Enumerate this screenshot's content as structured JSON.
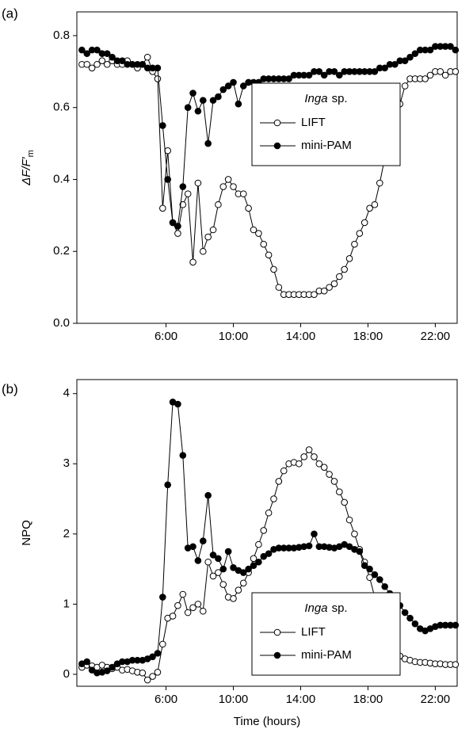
{
  "chart_data": [
    {
      "type": "line",
      "panel_label": "(a)",
      "ylabel": {
        "main": "ΔF/F′",
        "sub": "m"
      },
      "x": [
        1.0,
        1.3,
        1.6,
        1.9,
        2.2,
        2.5,
        2.8,
        3.1,
        3.4,
        3.7,
        4.0,
        4.3,
        4.6,
        4.9,
        5.2,
        5.5,
        5.8,
        6.1,
        6.4,
        6.7,
        7.0,
        7.3,
        7.6,
        7.9,
        8.2,
        8.5,
        8.8,
        9.1,
        9.4,
        9.7,
        10.0,
        10.3,
        10.6,
        10.9,
        11.2,
        11.5,
        11.8,
        12.1,
        12.4,
        12.7,
        13.0,
        13.3,
        13.6,
        13.9,
        14.2,
        14.5,
        14.8,
        15.1,
        15.4,
        15.7,
        16.0,
        16.3,
        16.6,
        16.9,
        17.2,
        17.5,
        17.8,
        18.1,
        18.4,
        18.7,
        19.0,
        19.3,
        19.6,
        19.9,
        20.2,
        20.5,
        20.8,
        21.1,
        21.4,
        21.7,
        22.0,
        22.3,
        22.6,
        22.9,
        23.2
      ],
      "series": [
        {
          "name": "LIFT",
          "color": "#000000",
          "marker": "open",
          "values": [
            0.72,
            0.72,
            0.71,
            0.72,
            0.73,
            0.72,
            0.73,
            0.72,
            0.72,
            0.73,
            0.72,
            0.71,
            0.72,
            0.74,
            0.7,
            0.68,
            0.32,
            0.48,
            0.28,
            0.25,
            0.33,
            0.36,
            0.17,
            0.39,
            0.2,
            0.24,
            0.26,
            0.33,
            0.38,
            0.4,
            0.38,
            0.36,
            0.36,
            0.32,
            0.26,
            0.25,
            0.22,
            0.19,
            0.15,
            0.1,
            0.08,
            0.08,
            0.08,
            0.08,
            0.08,
            0.08,
            0.08,
            0.09,
            0.09,
            0.1,
            0.11,
            0.13,
            0.15,
            0.18,
            0.22,
            0.25,
            0.28,
            0.32,
            0.33,
            0.39,
            0.46,
            0.52,
            0.56,
            0.61,
            0.66,
            0.68,
            0.68,
            0.68,
            0.68,
            0.69,
            0.7,
            0.7,
            0.69,
            0.7,
            0.7
          ]
        },
        {
          "name": "mini-PAM",
          "color": "#000000",
          "marker": "filled",
          "values": [
            0.76,
            0.75,
            0.76,
            0.76,
            0.75,
            0.75,
            0.74,
            0.73,
            0.73,
            0.72,
            0.72,
            0.72,
            0.72,
            0.71,
            0.71,
            0.71,
            0.55,
            0.4,
            0.28,
            0.27,
            0.38,
            0.6,
            0.64,
            0.59,
            0.62,
            0.5,
            0.62,
            0.63,
            0.65,
            0.66,
            0.67,
            0.61,
            0.66,
            0.67,
            0.67,
            0.67,
            0.68,
            0.68,
            0.68,
            0.68,
            0.68,
            0.68,
            0.69,
            0.69,
            0.69,
            0.69,
            0.7,
            0.7,
            0.69,
            0.7,
            0.7,
            0.69,
            0.7,
            0.7,
            0.7,
            0.7,
            0.7,
            0.7,
            0.7,
            0.71,
            0.71,
            0.72,
            0.72,
            0.73,
            0.73,
            0.74,
            0.75,
            0.76,
            0.76,
            0.76,
            0.77,
            0.77,
            0.77,
            0.77,
            0.76
          ]
        }
      ],
      "xlim": [
        0.7,
        23.3
      ],
      "xticks": [
        {
          "value": 6,
          "label": "6:00"
        },
        {
          "value": 10,
          "label": "10:00"
        },
        {
          "value": 14,
          "label": "14:00"
        },
        {
          "value": 18,
          "label": "18:00"
        },
        {
          "value": 22,
          "label": "22:00"
        }
      ],
      "ylim": [
        0,
        0.866
      ],
      "yticks": [
        {
          "value": 0,
          "label": "0.0"
        },
        {
          "value": 0.2,
          "label": "0.2"
        },
        {
          "value": 0.4,
          "label": "0.4"
        },
        {
          "value": 0.6,
          "label": "0.6"
        },
        {
          "value": 0.8,
          "label": "0.8"
        }
      ],
      "legend_title": {
        "italic": "Inga",
        "plain": "sp."
      },
      "legend_loc": "center right"
    },
    {
      "type": "line",
      "panel_label": "(b)",
      "ylabel": {
        "main": "NPQ"
      },
      "xlabel": "Time (hours)",
      "x": [
        1.0,
        1.3,
        1.6,
        1.9,
        2.2,
        2.5,
        2.8,
        3.1,
        3.4,
        3.7,
        4.0,
        4.3,
        4.6,
        4.9,
        5.2,
        5.5,
        5.8,
        6.1,
        6.4,
        6.7,
        7.0,
        7.3,
        7.6,
        7.9,
        8.2,
        8.5,
        8.8,
        9.1,
        9.4,
        9.7,
        10.0,
        10.3,
        10.6,
        10.9,
        11.2,
        11.5,
        11.8,
        12.1,
        12.4,
        12.7,
        13.0,
        13.3,
        13.6,
        13.9,
        14.2,
        14.5,
        14.8,
        15.1,
        15.4,
        15.7,
        16.0,
        16.3,
        16.6,
        16.9,
        17.2,
        17.5,
        17.8,
        18.1,
        18.4,
        18.7,
        19.0,
        19.3,
        19.6,
        19.9,
        20.2,
        20.5,
        20.8,
        21.1,
        21.4,
        21.7,
        22.0,
        22.3,
        22.6,
        22.9,
        23.2
      ],
      "series": [
        {
          "name": "LIFT",
          "color": "#000000",
          "marker": "open",
          "values": [
            0.1,
            0.13,
            0.12,
            0.1,
            0.13,
            0.1,
            0.08,
            0.1,
            0.06,
            0.07,
            0.05,
            0.03,
            0.02,
            -0.08,
            -0.03,
            0.03,
            0.43,
            0.8,
            0.83,
            0.98,
            1.14,
            0.88,
            0.95,
            1.0,
            0.9,
            1.6,
            1.4,
            1.45,
            1.28,
            1.1,
            1.08,
            1.2,
            1.3,
            1.45,
            1.65,
            1.85,
            2.05,
            2.3,
            2.5,
            2.75,
            2.9,
            3.0,
            3.02,
            3.0,
            3.1,
            3.2,
            3.1,
            3.0,
            2.95,
            2.85,
            2.75,
            2.6,
            2.45,
            2.2,
            2.0,
            1.78,
            1.6,
            1.38,
            1.1,
            0.85,
            0.6,
            0.4,
            0.3,
            0.26,
            0.22,
            0.2,
            0.18,
            0.17,
            0.17,
            0.16,
            0.15,
            0.15,
            0.14,
            0.14,
            0.14
          ]
        },
        {
          "name": "mini-PAM",
          "color": "#000000",
          "marker": "filled",
          "values": [
            0.15,
            0.18,
            0.06,
            0.02,
            0.03,
            0.05,
            0.1,
            0.15,
            0.18,
            0.18,
            0.2,
            0.2,
            0.2,
            0.22,
            0.25,
            0.3,
            1.1,
            2.7,
            3.88,
            3.85,
            3.12,
            1.8,
            1.82,
            1.62,
            1.9,
            2.55,
            1.7,
            1.65,
            1.5,
            1.75,
            1.52,
            1.48,
            1.45,
            1.5,
            1.55,
            1.6,
            1.68,
            1.72,
            1.78,
            1.8,
            1.8,
            1.8,
            1.8,
            1.81,
            1.82,
            1.83,
            2.0,
            1.82,
            1.82,
            1.81,
            1.8,
            1.82,
            1.85,
            1.82,
            1.78,
            1.75,
            1.55,
            1.5,
            1.42,
            1.35,
            1.25,
            1.15,
            1.05,
            0.98,
            0.88,
            0.8,
            0.72,
            0.65,
            0.62,
            0.65,
            0.68,
            0.7,
            0.7,
            0.7,
            0.7
          ]
        }
      ],
      "xlim": [
        0.7,
        23.3
      ],
      "xticks": [
        {
          "value": 6,
          "label": "6:00"
        },
        {
          "value": 10,
          "label": "10:00"
        },
        {
          "value": 14,
          "label": "14:00"
        },
        {
          "value": 18,
          "label": "18:00"
        },
        {
          "value": 22,
          "label": "22:00"
        }
      ],
      "ylim": [
        -0.17,
        4.2
      ],
      "yticks": [
        0,
        1,
        2,
        3,
        4
      ],
      "legend_title": {
        "italic": "Inga",
        "plain": "sp."
      },
      "legend_loc": "lower right"
    }
  ]
}
